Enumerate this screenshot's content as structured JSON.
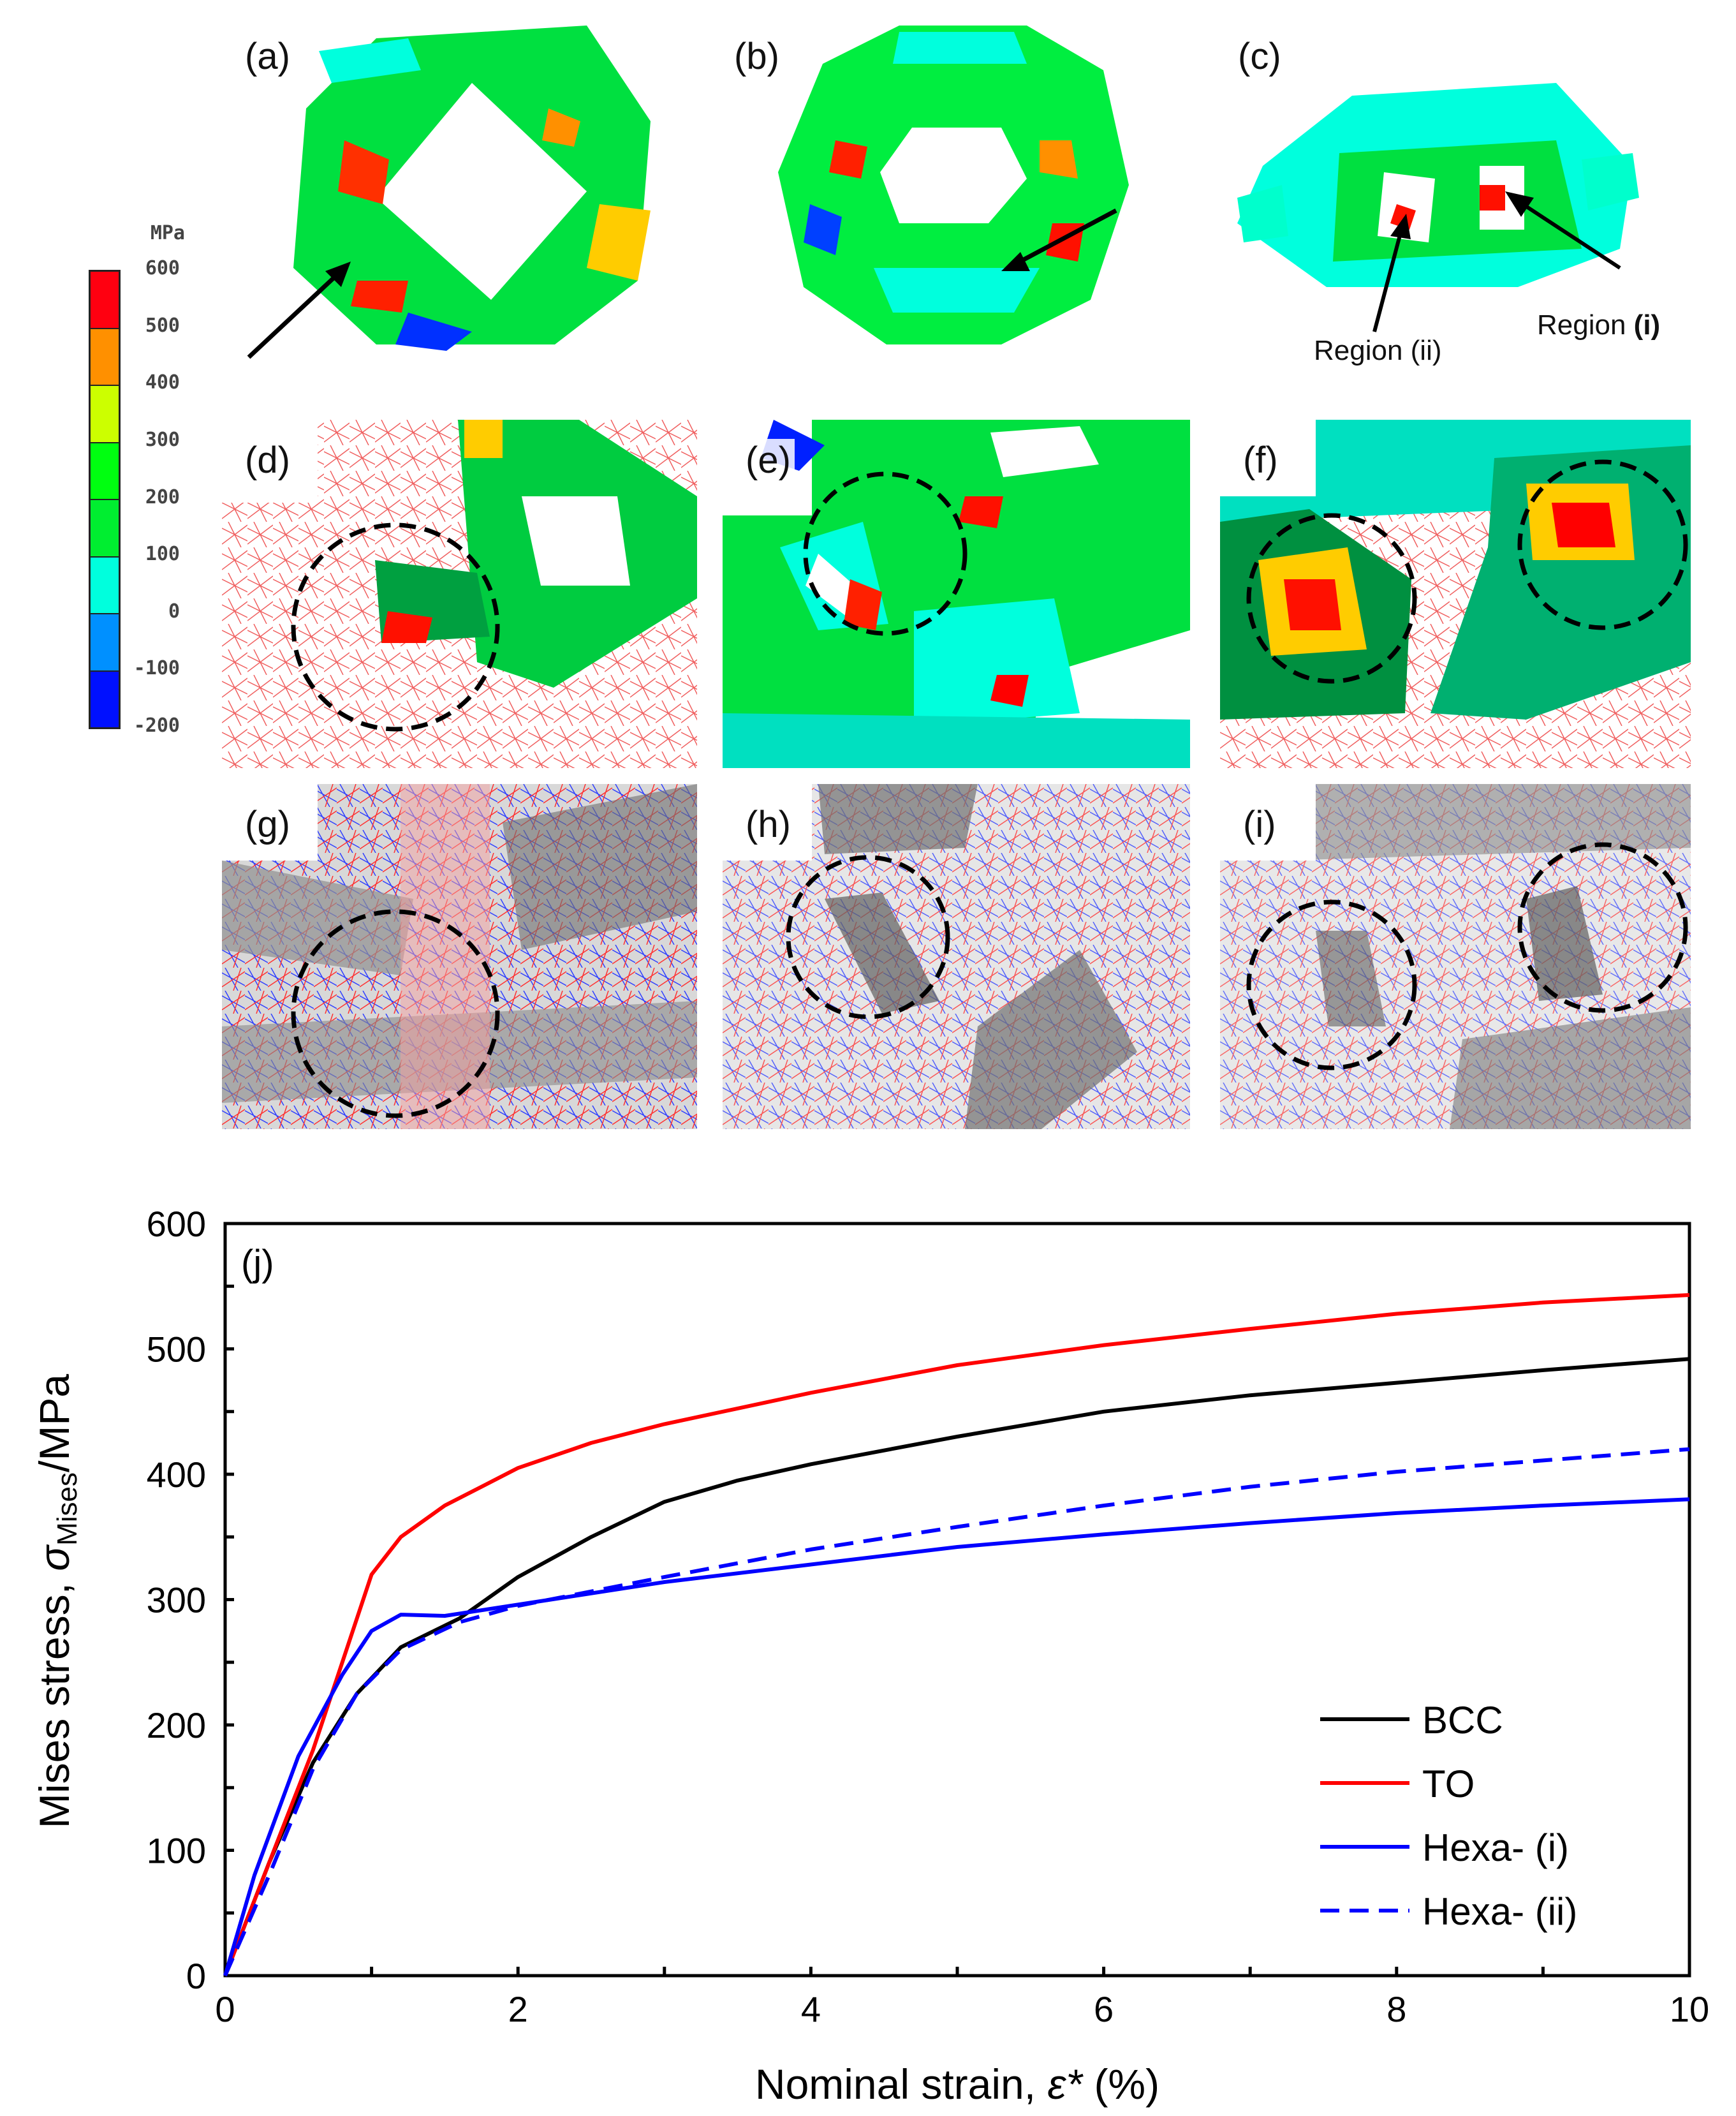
{
  "panels": {
    "a": "(a)",
    "b": "(b)",
    "c": "(c)",
    "d": "(d)",
    "e": "(e)",
    "f": "(f)",
    "g": "(g)",
    "h": "(h)",
    "i": "(i)"
  },
  "annotations": {
    "region_ii": "Region (ii)",
    "region_i_prefix": "Region ",
    "region_i_bold": "(i)"
  },
  "colorbar": {
    "unit": "MPa",
    "ticks": [
      "600",
      "500",
      "400",
      "300",
      "200",
      "100",
      "0",
      "-100",
      "-200"
    ],
    "colors": [
      "#ff0010",
      "#ff9000",
      "#ccff00",
      "#00ff10",
      "#00ee30",
      "#00ffdd",
      "#0090ff",
      "#0010ff"
    ]
  },
  "chart_data": {
    "type": "line",
    "panel_label": "(j)",
    "title": "",
    "xlabel": "Nominal strain, ε* (%)",
    "ylabel": "Mises stress, σMises/MPa",
    "ylabel_parts": {
      "pre": "Mises stress, ",
      "sigma": "σ",
      "sub": "Mises",
      "post": "/MPa"
    },
    "xlabel_parts": {
      "pre": "Nominal strain, ",
      "eps": "ε*",
      "post": " (%)"
    },
    "xlim": [
      0,
      10
    ],
    "ylim": [
      0,
      600
    ],
    "xticks": [
      "0",
      "2",
      "4",
      "6",
      "8",
      "10"
    ],
    "yticks": [
      "0",
      "100",
      "200",
      "300",
      "400",
      "500",
      "600"
    ],
    "grid": false,
    "legend_position": "bottom-right",
    "series": [
      {
        "name": "BCC",
        "color": "#000000",
        "dash": false,
        "x": [
          0,
          0.3,
          0.6,
          0.9,
          1.2,
          1.6,
          2,
          2.5,
          3,
          3.5,
          4,
          5,
          6,
          7,
          8,
          9,
          10
        ],
        "y": [
          0,
          90,
          170,
          225,
          262,
          285,
          318,
          350,
          378,
          395,
          408,
          430,
          450,
          463,
          473,
          483,
          492
        ]
      },
      {
        "name": "TO",
        "color": "#ff0000",
        "dash": false,
        "x": [
          0,
          0.3,
          0.6,
          0.8,
          1,
          1.2,
          1.5,
          2,
          2.5,
          3,
          4,
          5,
          6,
          7,
          8,
          9,
          10
        ],
        "y": [
          0,
          90,
          180,
          250,
          320,
          350,
          375,
          405,
          425,
          440,
          465,
          487,
          503,
          516,
          528,
          537,
          543
        ]
      },
      {
        "name": "Hexa- (i)",
        "color": "#0000ff",
        "dash": false,
        "x": [
          0,
          0.2,
          0.5,
          0.8,
          1,
          1.2,
          1.5,
          2,
          3,
          4,
          5,
          6,
          7,
          8,
          9,
          10
        ],
        "y": [
          0,
          80,
          175,
          240,
          275,
          288,
          287,
          296,
          314,
          328,
          342,
          352,
          361,
          369,
          375,
          380
        ]
      },
      {
        "name": "Hexa- (ii)",
        "color": "#0000ff",
        "dash": true,
        "x": [
          0,
          0.3,
          0.6,
          0.9,
          1.2,
          1.6,
          2,
          3,
          4,
          5,
          6,
          7,
          8,
          9,
          10
        ],
        "y": [
          0,
          80,
          165,
          225,
          260,
          282,
          295,
          318,
          340,
          358,
          375,
          390,
          402,
          411,
          420
        ]
      }
    ]
  }
}
